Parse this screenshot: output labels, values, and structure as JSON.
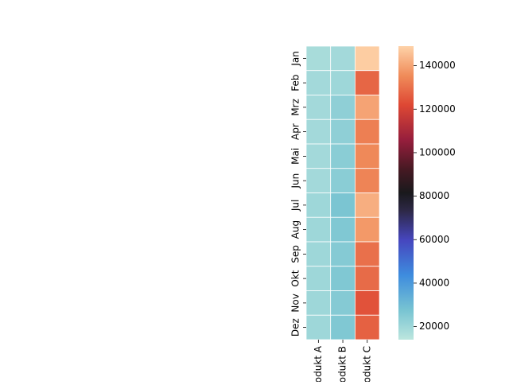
{
  "chart_data": {
    "type": "heatmap",
    "title": "",
    "xlabel": "",
    "ylabel": "",
    "rows": [
      "Jan",
      "Feb",
      "Mrz",
      "Apr",
      "Mai",
      "Jun",
      "Jul",
      "Aug",
      "Sep",
      "Okt",
      "Nov",
      "Dez"
    ],
    "columns": [
      "Produkt A",
      "Produkt B",
      "Produkt C"
    ],
    "values": [
      [
        18000,
        19000,
        148000
      ],
      [
        19000,
        20000,
        128000
      ],
      [
        19000,
        23000,
        140000
      ],
      [
        19000,
        23000,
        133000
      ],
      [
        19000,
        24000,
        135000
      ],
      [
        19000,
        24000,
        134000
      ],
      [
        20000,
        27000,
        142000
      ],
      [
        20000,
        26000,
        138000
      ],
      [
        20000,
        25000,
        130000
      ],
      [
        20000,
        26000,
        129000
      ],
      [
        20000,
        25000,
        124000
      ],
      [
        20000,
        26000,
        127000
      ]
    ],
    "colorbar": {
      "min": 14000,
      "max": 149000,
      "ticks": [
        20000,
        40000,
        60000,
        80000,
        100000,
        120000,
        140000
      ],
      "colormap": "icefire-like"
    },
    "grid": false
  }
}
